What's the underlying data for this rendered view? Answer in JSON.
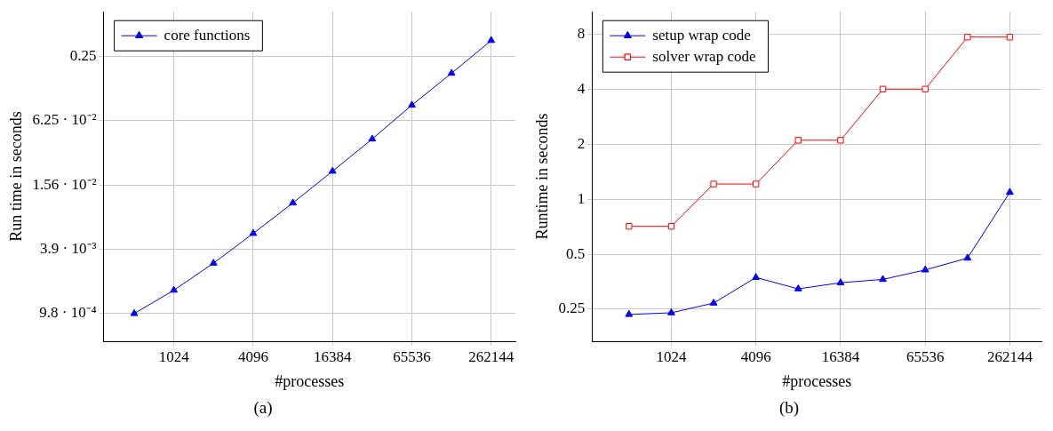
{
  "chart_data": [
    {
      "type": "line",
      "xlabel": "#processes",
      "ylabel": "Run time in seconds",
      "log": "xy",
      "grid": true,
      "legend": "top left",
      "line_style": "solid",
      "x": [
        512,
        1024,
        2048,
        4096,
        8192,
        16384,
        32768,
        65536,
        131072,
        262144
      ],
      "xlim": [
        300,
        400000
      ],
      "xticks": [
        1024,
        4096,
        16384,
        65536,
        262144
      ],
      "ylim": [
        0.00054,
        0.65
      ],
      "yticks": [
        {
          "value": 0.00098,
          "label": "9.8 · 10⁻⁴"
        },
        {
          "value": 0.0039,
          "label": "3.9 · 10⁻³"
        },
        {
          "value": 0.0156,
          "label": "1.56 · 10⁻²"
        },
        {
          "value": 0.0625,
          "label": "6.25 · 10⁻²"
        },
        {
          "value": 0.25,
          "label": "0.25"
        }
      ],
      "series": [
        {
          "name": "core functions",
          "color": "#0000ff",
          "marker": "triangle",
          "values": [
            0.00098,
            0.00162,
            0.0029,
            0.0055,
            0.0106,
            0.021,
            0.042,
            0.087,
            0.173,
            0.35
          ]
        }
      ],
      "annotations": [
        "(a)"
      ]
    },
    {
      "type": "line",
      "xlabel": "#processes",
      "ylabel": "Runtime in seconds",
      "log": "xy",
      "grid": true,
      "legend": "top left",
      "line_style": "solid",
      "x": [
        512,
        1024,
        2048,
        4096,
        8192,
        16384,
        32768,
        65536,
        131072,
        262144
      ],
      "xlim": [
        280,
        440000
      ],
      "xticks": [
        1024,
        4096,
        16384,
        65536,
        262144
      ],
      "ylim": [
        0.167,
        10.6
      ],
      "yticks": [
        0.25,
        0.5,
        1,
        2,
        4,
        8
      ],
      "series": [
        {
          "name": "setup wrap code",
          "color": "#0000ff",
          "marker": "triangle",
          "values": [
            0.234,
            0.239,
            0.27,
            0.373,
            0.323,
            0.349,
            0.364,
            0.41,
            0.476,
            1.09
          ]
        },
        {
          "name": "solver wrap code",
          "color": "#ff0000",
          "marker": "square",
          "values": [
            0.71,
            0.71,
            1.21,
            1.21,
            2.1,
            2.1,
            4,
            4,
            7.7,
            7.7
          ]
        }
      ],
      "annotations": [
        "(b)"
      ]
    }
  ]
}
